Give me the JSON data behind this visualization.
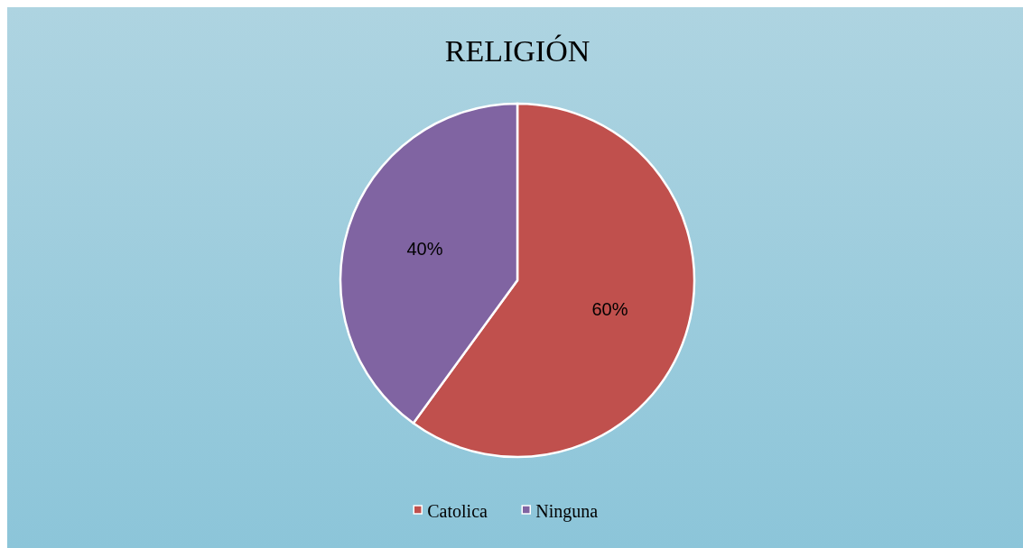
{
  "chart_data": {
    "type": "pie",
    "title": "RELIGIÓN",
    "categories": [
      "Catolica",
      "Ninguna"
    ],
    "values": [
      60,
      40
    ],
    "colors": [
      "#c0504d",
      "#8064a2"
    ],
    "value_labels": [
      "60%",
      "40%"
    ],
    "legend": "bottom"
  }
}
